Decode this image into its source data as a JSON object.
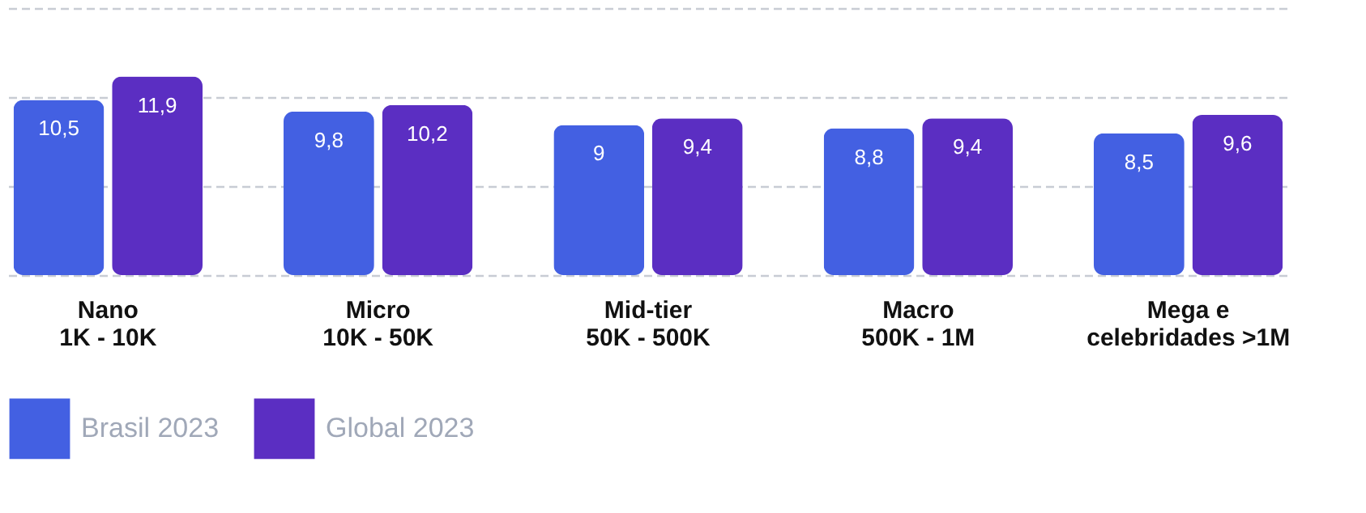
{
  "chart_data": {
    "type": "bar",
    "categories": [
      "Nano\n1K - 10K",
      "Micro\n10K - 50K",
      "Mid-tier\n50K - 500K",
      "Macro\n500K - 1M",
      "Mega e\ncelebridades >1M"
    ],
    "series": [
      {
        "name": "Brasil 2023",
        "color": "#4360e2",
        "values": [
          10.5,
          9.8,
          9,
          8.8,
          8.5
        ],
        "value_labels": [
          "10,5",
          "9,8",
          "9",
          "8,8",
          "8,5"
        ]
      },
      {
        "name": "Global 2023",
        "color": "#5b2ec2",
        "values": [
          11.9,
          10.2,
          9.4,
          9.4,
          9.6
        ],
        "value_labels": [
          "11,9",
          "10,2",
          "9,4",
          "9,4",
          "9,6"
        ]
      }
    ],
    "ylim": [
      0,
      16
    ],
    "yticks": [
      {
        "value": 0,
        "label": null
      },
      {
        "value": 5.3,
        "label": null
      },
      {
        "value": 10.7,
        "label": null
      },
      {
        "value": 16,
        "label": null
      }
    ],
    "grid": "y",
    "legend": "bottom left",
    "tick_labels": "x"
  }
}
